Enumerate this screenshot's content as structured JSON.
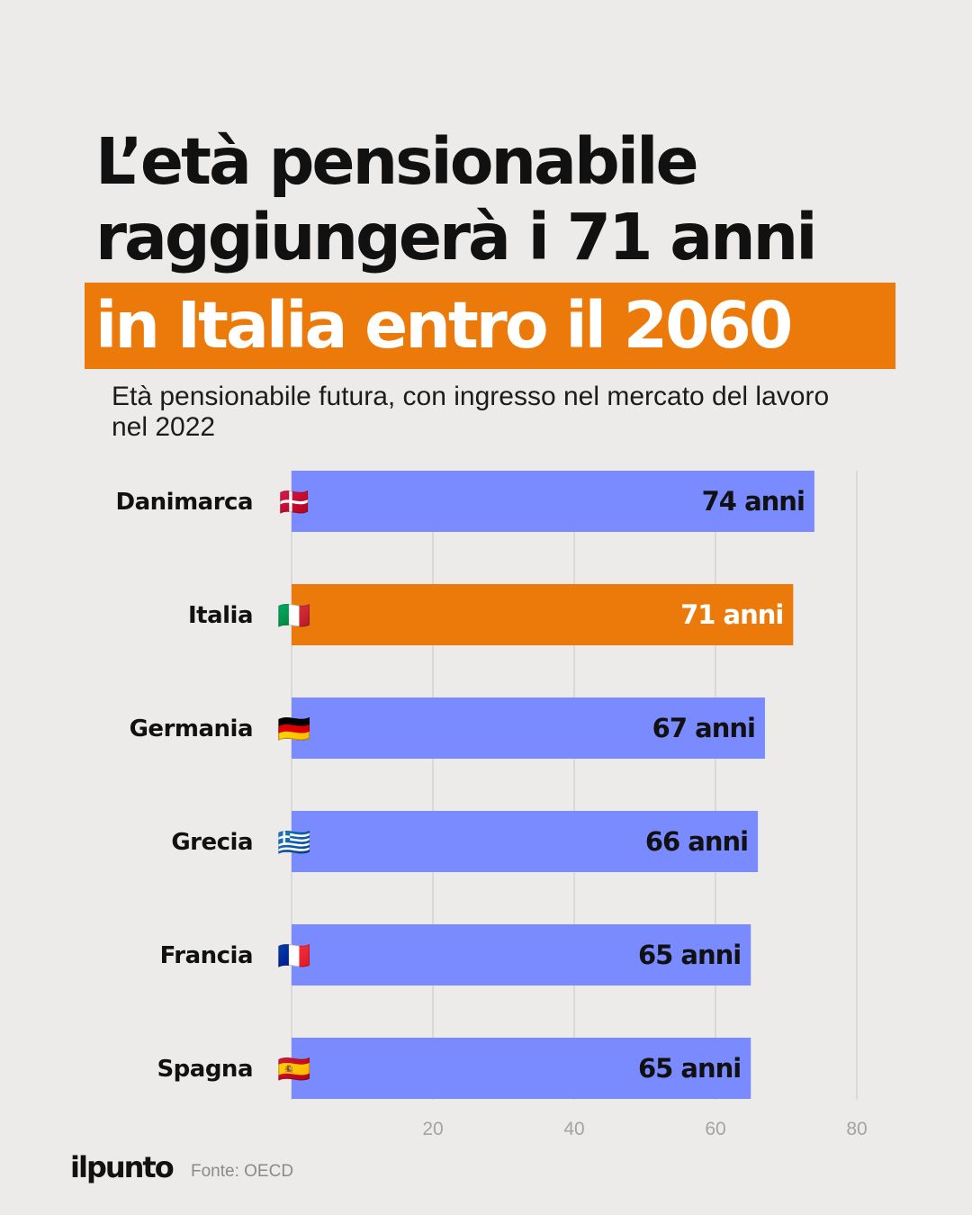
{
  "title": {
    "line1": "L’età pensionabile",
    "line2": "raggiungerà i 71 anni",
    "highlight": "in Italia entro il 2060"
  },
  "subtitle": "Età pensionabile futura, con ingresso nel mercato del lavoro nel 2022",
  "chart_data": {
    "type": "bar",
    "orientation": "horizontal",
    "categories": [
      "Danimarca",
      "Italia",
      "Germania",
      "Grecia",
      "Francia",
      "Spagna"
    ],
    "flags": [
      "🇩🇰",
      "🇮🇹",
      "🇩🇪",
      "🇬🇷",
      "🇫🇷",
      "🇪🇸"
    ],
    "values": [
      74,
      71,
      67,
      66,
      65,
      65
    ],
    "value_labels": [
      "74 anni",
      "71 anni",
      "67 anni",
      "66 anni",
      "65 anni",
      "65 anni"
    ],
    "highlight_category": "Italia",
    "x_ticks": [
      20,
      40,
      60,
      80
    ],
    "xlim": [
      0,
      80
    ],
    "grid": true,
    "colors": {
      "bar": "#7a8bff",
      "highlight": "#eb7a0a",
      "grid": "#d3d3d3"
    }
  },
  "footer": {
    "logo": "ilpunto",
    "source": "Fonte: OECD"
  }
}
